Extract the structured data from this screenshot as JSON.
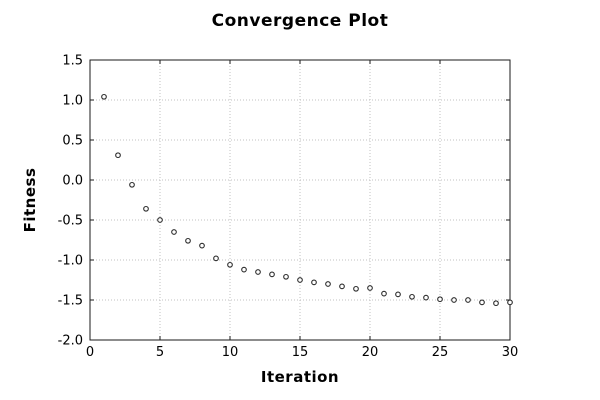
{
  "chart_data": {
    "type": "scatter",
    "title": "Convergence Plot",
    "xlabel": "Iteration",
    "ylabel": "Fitness",
    "x": [
      1,
      2,
      3,
      4,
      5,
      6,
      7,
      8,
      9,
      10,
      11,
      12,
      13,
      14,
      15,
      16,
      17,
      18,
      19,
      20,
      21,
      22,
      23,
      24,
      25,
      26,
      27,
      28,
      29,
      30
    ],
    "y": [
      1.04,
      0.31,
      -0.06,
      -0.36,
      -0.5,
      -0.65,
      -0.76,
      -0.82,
      -0.98,
      -1.06,
      -1.12,
      -1.15,
      -1.18,
      -1.21,
      -1.25,
      -1.28,
      -1.3,
      -1.33,
      -1.36,
      -1.35,
      -1.42,
      -1.43,
      -1.46,
      -1.47,
      -1.49,
      -1.5,
      -1.5,
      -1.53,
      -1.54,
      -1.53
    ],
    "xlim": [
      0,
      30
    ],
    "ylim": [
      -2.0,
      1.5
    ],
    "xticks": {
      "values": [
        0,
        5,
        10,
        15,
        20,
        25,
        30
      ],
      "labels": [
        "0",
        "5",
        "10",
        "15",
        "20",
        "25",
        "30"
      ]
    },
    "yticks": {
      "values": [
        -2.0,
        -1.5,
        -1.0,
        -0.5,
        0.0,
        0.5,
        1.0,
        1.5
      ],
      "labels": [
        "-2.0",
        "-1.5",
        "-1.0",
        "-0.5",
        "0.0",
        "0.5",
        "1.0",
        "1.5"
      ]
    },
    "grid": true,
    "legend": null,
    "marker": {
      "shape": "open-circle",
      "color": "#2d2d2d",
      "fill": "#ffffff"
    },
    "colors": {
      "background": "#ffffff",
      "border": "#1a1a1a",
      "grid": "#c0c0c0",
      "text": "#000000"
    }
  }
}
